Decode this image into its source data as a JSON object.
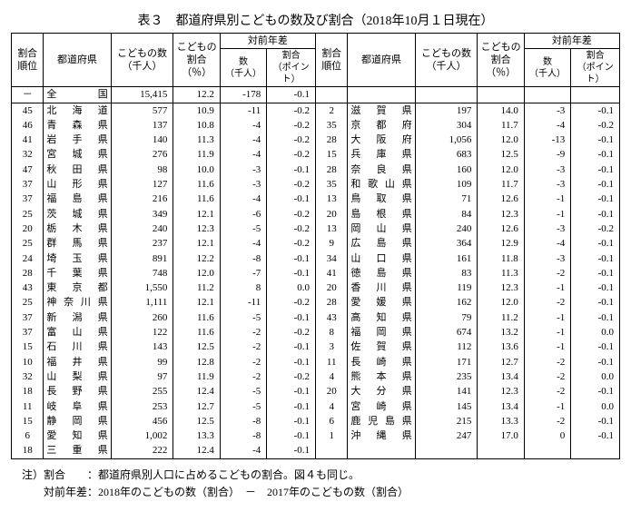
{
  "title": "表３　都道府県別こどもの数及び割合（2018年10月１日現在）",
  "headers": {
    "rank": "割合\n順位",
    "pref": "都道府県",
    "count": "こどもの数\n（千人）",
    "pct": "こどもの\n割合\n（％）",
    "diff_group": "対前年差",
    "diff_a": "数\n（千人）",
    "diff_b": "割合\n（ポイント）"
  },
  "total_row": {
    "rank": "－",
    "pref": "全　　　国",
    "count": "15,415",
    "pct": "12.2",
    "da": "-178",
    "db": "-0.1"
  },
  "left_rows": [
    {
      "rank": "45",
      "pref": "北 海 道",
      "count": "577",
      "pct": "10.9",
      "da": "-11",
      "db": "-0.2"
    },
    {
      "rank": "46",
      "pref": "青 森 県",
      "count": "137",
      "pct": "10.8",
      "da": "-4",
      "db": "-0.2"
    },
    {
      "rank": "41",
      "pref": "岩 手 県",
      "count": "140",
      "pct": "11.3",
      "da": "-4",
      "db": "-0.2"
    },
    {
      "rank": "32",
      "pref": "宮 城 県",
      "count": "276",
      "pct": "11.9",
      "da": "-4",
      "db": "-0.2"
    },
    {
      "rank": "47",
      "pref": "秋 田 県",
      "count": "98",
      "pct": "10.0",
      "da": "-3",
      "db": "-0.1"
    },
    {
      "rank": "37",
      "pref": "山 形 県",
      "count": "127",
      "pct": "11.6",
      "da": "-3",
      "db": "-0.2"
    },
    {
      "rank": "37",
      "pref": "福 島 県",
      "count": "216",
      "pct": "11.6",
      "da": "-4",
      "db": "-0.1"
    },
    {
      "rank": "25",
      "pref": "茨 城 県",
      "count": "349",
      "pct": "12.1",
      "da": "-6",
      "db": "-0.2"
    },
    {
      "rank": "20",
      "pref": "栃 木 県",
      "count": "240",
      "pct": "12.3",
      "da": "-5",
      "db": "-0.2"
    },
    {
      "rank": "25",
      "pref": "群 馬 県",
      "count": "237",
      "pct": "12.1",
      "da": "-4",
      "db": "-0.2"
    },
    {
      "rank": "24",
      "pref": "埼 玉 県",
      "count": "891",
      "pct": "12.2",
      "da": "-8",
      "db": "-0.1"
    },
    {
      "rank": "28",
      "pref": "千 葉 県",
      "count": "748",
      "pct": "12.0",
      "da": "-7",
      "db": "-0.1"
    },
    {
      "rank": "43",
      "pref": "東 京 都",
      "count": "1,550",
      "pct": "11.2",
      "da": "8",
      "db": "0.0"
    },
    {
      "rank": "25",
      "pref": "神奈川県",
      "count": "1,111",
      "pct": "12.1",
      "da": "-11",
      "db": "-0.2"
    },
    {
      "rank": "37",
      "pref": "新 潟 県",
      "count": "260",
      "pct": "11.6",
      "da": "-5",
      "db": "-0.1"
    },
    {
      "rank": "37",
      "pref": "富 山 県",
      "count": "122",
      "pct": "11.6",
      "da": "-2",
      "db": "-0.2"
    },
    {
      "rank": "15",
      "pref": "石 川 県",
      "count": "143",
      "pct": "12.5",
      "da": "-2",
      "db": "-0.1"
    },
    {
      "rank": "10",
      "pref": "福 井 県",
      "count": "99",
      "pct": "12.8",
      "da": "-2",
      "db": "-0.1"
    },
    {
      "rank": "32",
      "pref": "山 梨 県",
      "count": "97",
      "pct": "11.9",
      "da": "-2",
      "db": "-0.2"
    },
    {
      "rank": "18",
      "pref": "長 野 県",
      "count": "255",
      "pct": "12.4",
      "da": "-5",
      "db": "-0.1"
    },
    {
      "rank": "11",
      "pref": "岐 阜 県",
      "count": "253",
      "pct": "12.7",
      "da": "-5",
      "db": "-0.1"
    },
    {
      "rank": "15",
      "pref": "静 岡 県",
      "count": "456",
      "pct": "12.5",
      "da": "-8",
      "db": "-0.1"
    },
    {
      "rank": "6",
      "pref": "愛 知 県",
      "count": "1,002",
      "pct": "13.3",
      "da": "-8",
      "db": "-0.1"
    },
    {
      "rank": "18",
      "pref": "三 重 県",
      "count": "222",
      "pct": "12.4",
      "da": "-4",
      "db": "-0.1"
    }
  ],
  "right_rows": [
    {
      "rank": "2",
      "pref": "滋 賀 県",
      "count": "197",
      "pct": "14.0",
      "da": "-3",
      "db": "-0.1"
    },
    {
      "rank": "35",
      "pref": "京 都 府",
      "count": "304",
      "pct": "11.7",
      "da": "-4",
      "db": "-0.2"
    },
    {
      "rank": "28",
      "pref": "大 阪 府",
      "count": "1,056",
      "pct": "12.0",
      "da": "-13",
      "db": "-0.1"
    },
    {
      "rank": "15",
      "pref": "兵 庫 県",
      "count": "683",
      "pct": "12.5",
      "da": "-9",
      "db": "-0.1"
    },
    {
      "rank": "28",
      "pref": "奈 良 県",
      "count": "160",
      "pct": "12.0",
      "da": "-3",
      "db": "-0.1"
    },
    {
      "rank": "35",
      "pref": "和歌山県",
      "count": "109",
      "pct": "11.7",
      "da": "-3",
      "db": "-0.1"
    },
    {
      "rank": "13",
      "pref": "鳥 取 県",
      "count": "71",
      "pct": "12.6",
      "da": "-1",
      "db": "-0.1"
    },
    {
      "rank": "20",
      "pref": "島 根 県",
      "count": "84",
      "pct": "12.3",
      "da": "-1",
      "db": "-0.1"
    },
    {
      "rank": "13",
      "pref": "岡 山 県",
      "count": "240",
      "pct": "12.6",
      "da": "-3",
      "db": "-0.2"
    },
    {
      "rank": "9",
      "pref": "広 島 県",
      "count": "364",
      "pct": "12.9",
      "da": "-4",
      "db": "-0.1"
    },
    {
      "rank": "34",
      "pref": "山 口 県",
      "count": "161",
      "pct": "11.8",
      "da": "-3",
      "db": "-0.1"
    },
    {
      "rank": "41",
      "pref": "徳 島 県",
      "count": "83",
      "pct": "11.3",
      "da": "-2",
      "db": "-0.1"
    },
    {
      "rank": "20",
      "pref": "香 川 県",
      "count": "119",
      "pct": "12.3",
      "da": "-1",
      "db": "-0.1"
    },
    {
      "rank": "28",
      "pref": "愛 媛 県",
      "count": "162",
      "pct": "12.0",
      "da": "-2",
      "db": "-0.1"
    },
    {
      "rank": "43",
      "pref": "高 知 県",
      "count": "79",
      "pct": "11.2",
      "da": "-1",
      "db": "-0.1"
    },
    {
      "rank": "8",
      "pref": "福 岡 県",
      "count": "674",
      "pct": "13.2",
      "da": "-1",
      "db": "0.0"
    },
    {
      "rank": "3",
      "pref": "佐 賀 県",
      "count": "112",
      "pct": "13.6",
      "da": "-1",
      "db": "-0.1"
    },
    {
      "rank": "11",
      "pref": "長 崎 県",
      "count": "171",
      "pct": "12.7",
      "da": "-2",
      "db": "-0.1"
    },
    {
      "rank": "4",
      "pref": "熊 本 県",
      "count": "235",
      "pct": "13.4",
      "da": "-2",
      "db": "0.0"
    },
    {
      "rank": "20",
      "pref": "大 分 県",
      "count": "141",
      "pct": "12.3",
      "da": "-2",
      "db": "-0.1"
    },
    {
      "rank": "4",
      "pref": "宮 崎 県",
      "count": "145",
      "pct": "13.4",
      "da": "-1",
      "db": "0.0"
    },
    {
      "rank": "6",
      "pref": "鹿児島県",
      "count": "215",
      "pct": "13.3",
      "da": "-2",
      "db": "-0.1"
    },
    {
      "rank": "1",
      "pref": "沖 縄 県",
      "count": "247",
      "pct": "17.0",
      "da": "0",
      "db": "-0.1"
    }
  ],
  "notes": {
    "line1a": "注）割合",
    "line1b": "：都道府県別人口に占めるこどもの割合。図４も同じ。",
    "line2a": "　　対前年差",
    "line2b": "：2018年のこどもの数（割合）　－　2017年のこどもの数（割合）"
  }
}
